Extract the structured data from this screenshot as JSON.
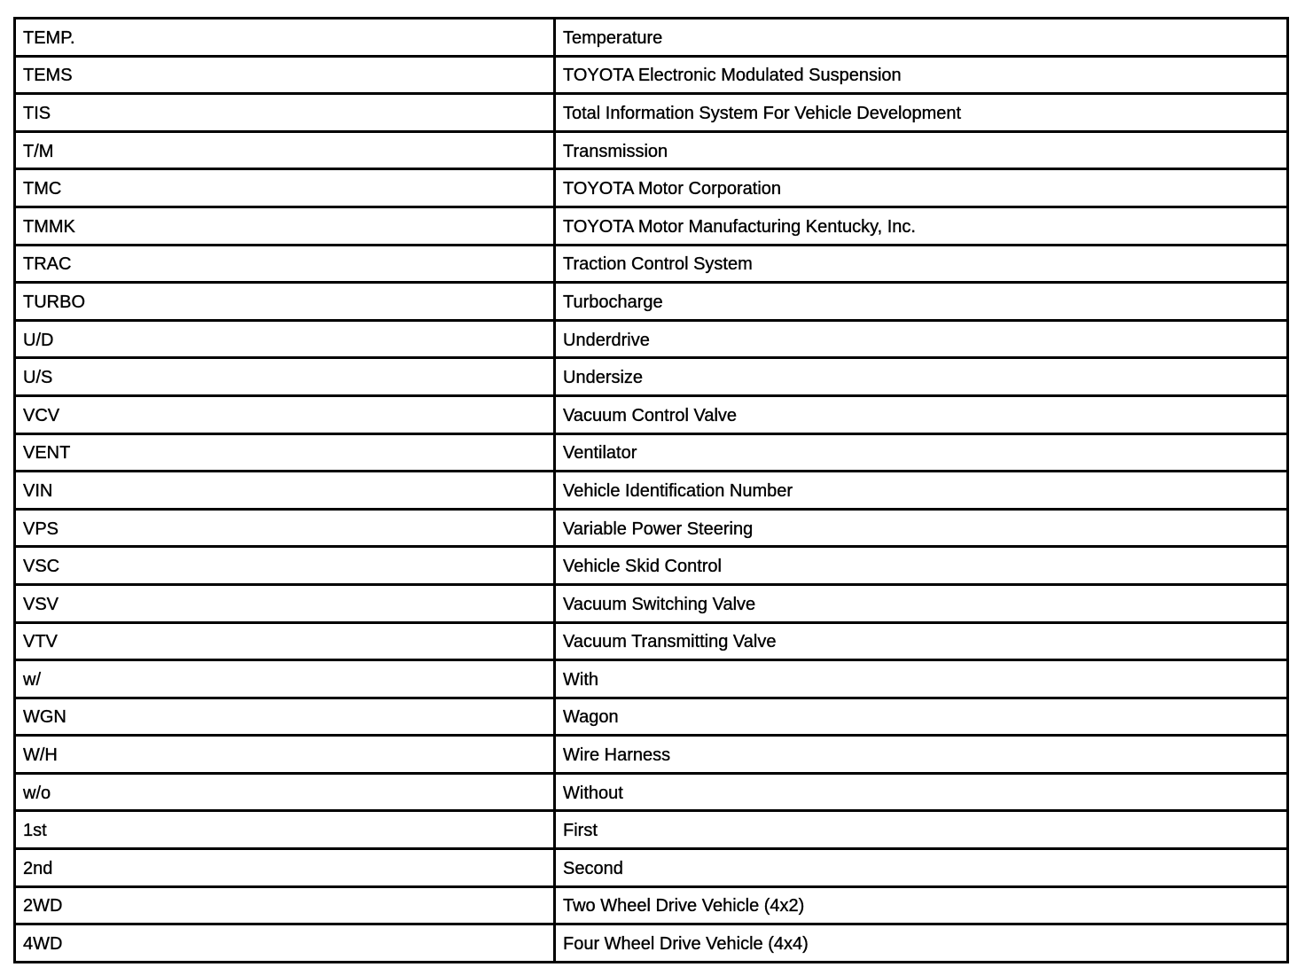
{
  "rows": [
    {
      "abbr": "TEMP.",
      "meaning": "Temperature"
    },
    {
      "abbr": "TEMS",
      "meaning": "TOYOTA Electronic Modulated Suspension"
    },
    {
      "abbr": "TIS",
      "meaning": "Total Information System For Vehicle Development"
    },
    {
      "abbr": "T/M",
      "meaning": "Transmission"
    },
    {
      "abbr": "TMC",
      "meaning": "TOYOTA Motor Corporation"
    },
    {
      "abbr": "TMMK",
      "meaning": "TOYOTA Motor Manufacturing Kentucky, Inc."
    },
    {
      "abbr": "TRAC",
      "meaning": "Traction Control System"
    },
    {
      "abbr": "TURBO",
      "meaning": "Turbocharge"
    },
    {
      "abbr": "U/D",
      "meaning": "Underdrive"
    },
    {
      "abbr": "U/S",
      "meaning": "Undersize"
    },
    {
      "abbr": "VCV",
      "meaning": "Vacuum Control Valve"
    },
    {
      "abbr": "VENT",
      "meaning": "Ventilator"
    },
    {
      "abbr": "VIN",
      "meaning": "Vehicle Identification Number"
    },
    {
      "abbr": "VPS",
      "meaning": "Variable Power Steering"
    },
    {
      "abbr": "VSC",
      "meaning": "Vehicle Skid Control"
    },
    {
      "abbr": "VSV",
      "meaning": "Vacuum Switching Valve"
    },
    {
      "abbr": "VTV",
      "meaning": "Vacuum Transmitting Valve"
    },
    {
      "abbr": "w/",
      "meaning": "With"
    },
    {
      "abbr": "WGN",
      "meaning": "Wagon"
    },
    {
      "abbr": "W/H",
      "meaning": "Wire Harness"
    },
    {
      "abbr": "w/o",
      "meaning": "Without"
    },
    {
      "abbr": "1st",
      "meaning": "First"
    },
    {
      "abbr": "2nd",
      "meaning": "Second"
    },
    {
      "abbr": "2WD",
      "meaning": "Two Wheel Drive Vehicle (4x2)"
    },
    {
      "abbr": "4WD",
      "meaning": "Four Wheel Drive Vehicle (4x4)"
    }
  ]
}
